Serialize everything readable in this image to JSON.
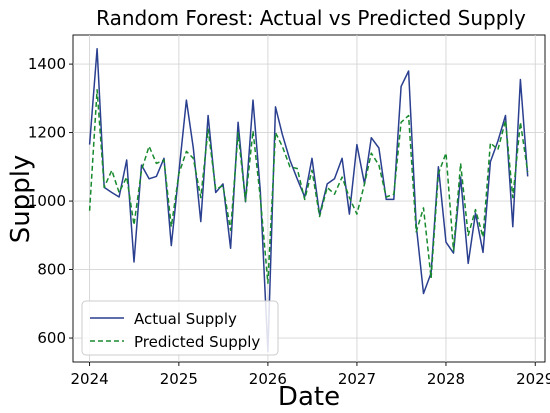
{
  "chart_data": {
    "type": "line",
    "title": "Random Forest: Actual vs Predicted Supply",
    "xlabel": "Date",
    "ylabel": "Supply",
    "xlim": [
      "2023-10-25",
      "2029-02-10"
    ],
    "ylim": [
      530,
      1485
    ],
    "x_ticks": [
      "2024",
      "2025",
      "2026",
      "2027",
      "2028",
      "2029"
    ],
    "y_ticks": [
      600,
      800,
      1000,
      1200,
      1400
    ],
    "grid": true,
    "legend": "lower-left",
    "x": [
      "2024-01",
      "2024-02",
      "2024-03",
      "2024-04",
      "2024-05",
      "2024-06",
      "2024-07",
      "2024-08",
      "2024-09",
      "2024-10",
      "2024-11",
      "2024-12",
      "2025-01",
      "2025-02",
      "2025-03",
      "2025-04",
      "2025-05",
      "2025-06",
      "2025-07",
      "2025-08",
      "2025-09",
      "2025-10",
      "2025-11",
      "2025-12",
      "2026-01",
      "2026-02",
      "2026-03",
      "2026-04",
      "2026-05",
      "2026-06",
      "2026-07",
      "2026-08",
      "2026-09",
      "2026-10",
      "2026-11",
      "2026-12",
      "2027-01",
      "2027-02",
      "2027-03",
      "2027-04",
      "2027-05",
      "2027-06",
      "2027-07",
      "2027-08",
      "2027-09",
      "2027-10",
      "2027-11",
      "2027-12",
      "2028-01",
      "2028-02",
      "2028-03",
      "2028-04",
      "2028-05",
      "2028-06",
      "2028-07",
      "2028-08",
      "2028-09",
      "2028-10",
      "2028-11",
      "2028-12"
    ],
    "series": [
      {
        "name": "Actual Supply",
        "color": "#2a3f8f",
        "style": "solid",
        "values": [
          1165,
          1445,
          1040,
          1025,
          1012,
          1120,
          822,
          1105,
          1065,
          1072,
          1125,
          870,
          1085,
          1295,
          1155,
          940,
          1250,
          1025,
          1050,
          862,
          1230,
          998,
          1295,
          1030,
          560,
          1275,
          1195,
          1120,
          1065,
          1012,
          1125,
          960,
          1050,
          1065,
          1125,
          962,
          1165,
          1050,
          1185,
          1155,
          1005,
          1005,
          1335,
          1380,
          930,
          730,
          790,
          1100,
          880,
          848,
          1070,
          818,
          965,
          850,
          1115,
          1175,
          1250,
          925,
          1355,
          1072
        ]
      },
      {
        "name": "Predicted Supply",
        "color": "#188a2e",
        "style": "dashed",
        "values": [
          972,
          1325,
          1040,
          1090,
          1025,
          1070,
          930,
          1090,
          1160,
          1110,
          1120,
          925,
          1080,
          1145,
          1125,
          1010,
          1210,
          1035,
          1045,
          915,
          1200,
          1000,
          1205,
          1010,
          760,
          1200,
          1160,
          1100,
          1095,
          1005,
          1090,
          955,
          1040,
          1020,
          1070,
          1010,
          962,
          1050,
          1140,
          1105,
          1012,
          1020,
          1230,
          1250,
          910,
          980,
          775,
          1080,
          1140,
          855,
          1110,
          900,
          975,
          895,
          1170,
          1150,
          1235,
          1010,
          1230,
          1085
        ]
      }
    ]
  }
}
